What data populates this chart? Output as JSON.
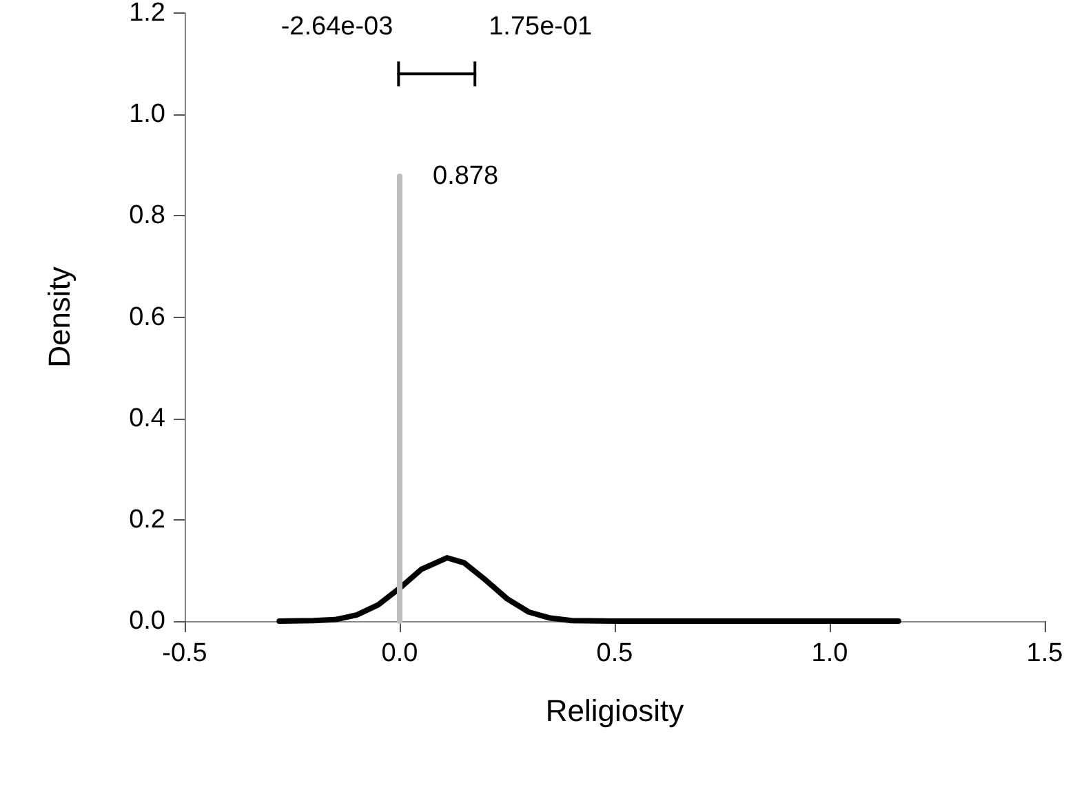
{
  "chart_data": {
    "type": "line",
    "xlabel": "Religiosity",
    "ylabel": "Density",
    "xlim": [
      -0.5,
      1.5
    ],
    "xticks": [
      -0.5,
      {
        "value": 0,
        "label": "0.0"
      },
      0.5,
      {
        "value": 1,
        "label": "1.0"
      },
      1.5
    ],
    "ylim": [
      0,
      1.2
    ],
    "yticks": [
      {
        "value": 0,
        "label": "0.0"
      },
      0.2,
      0.4,
      0.6,
      0.8,
      {
        "value": 1,
        "label": "1.0"
      },
      1.2
    ],
    "grid": false,
    "marker": "none",
    "line_style": "solid",
    "series": [
      {
        "color": "#000000",
        "x": [
          -0.28,
          -0.2,
          -0.15,
          -0.1,
          -0.05,
          0,
          0.05,
          0.11,
          0.15,
          0.2,
          0.25,
          0.3,
          0.35,
          0.4,
          0.5,
          0.8,
          1.16
        ],
        "values": [
          0,
          0.001,
          0.003,
          0.012,
          0.032,
          0.065,
          0.102,
          0.125,
          0.115,
          0.081,
          0.044,
          0.018,
          0.006,
          0.001,
          0,
          0,
          0
        ]
      },
      {
        "color": "#bebebe",
        "x": [
          0,
          0
        ],
        "values": [
          0,
          0.878
        ]
      },
      {
        "type": "line",
        "color": "#000000",
        "x": [
          -0.00264,
          0.175
        ],
        "values": [
          1.08,
          1.08
        ]
      }
    ],
    "annotations": [
      {
        "text": "-2.64e-03",
        "x": -0.00264,
        "y": 1.08
      },
      {
        "text": "1.75e-01",
        "x": 0.175,
        "y": 1.08
      },
      {
        "text": "0.878",
        "x": 0,
        "y": 0.878
      }
    ]
  }
}
